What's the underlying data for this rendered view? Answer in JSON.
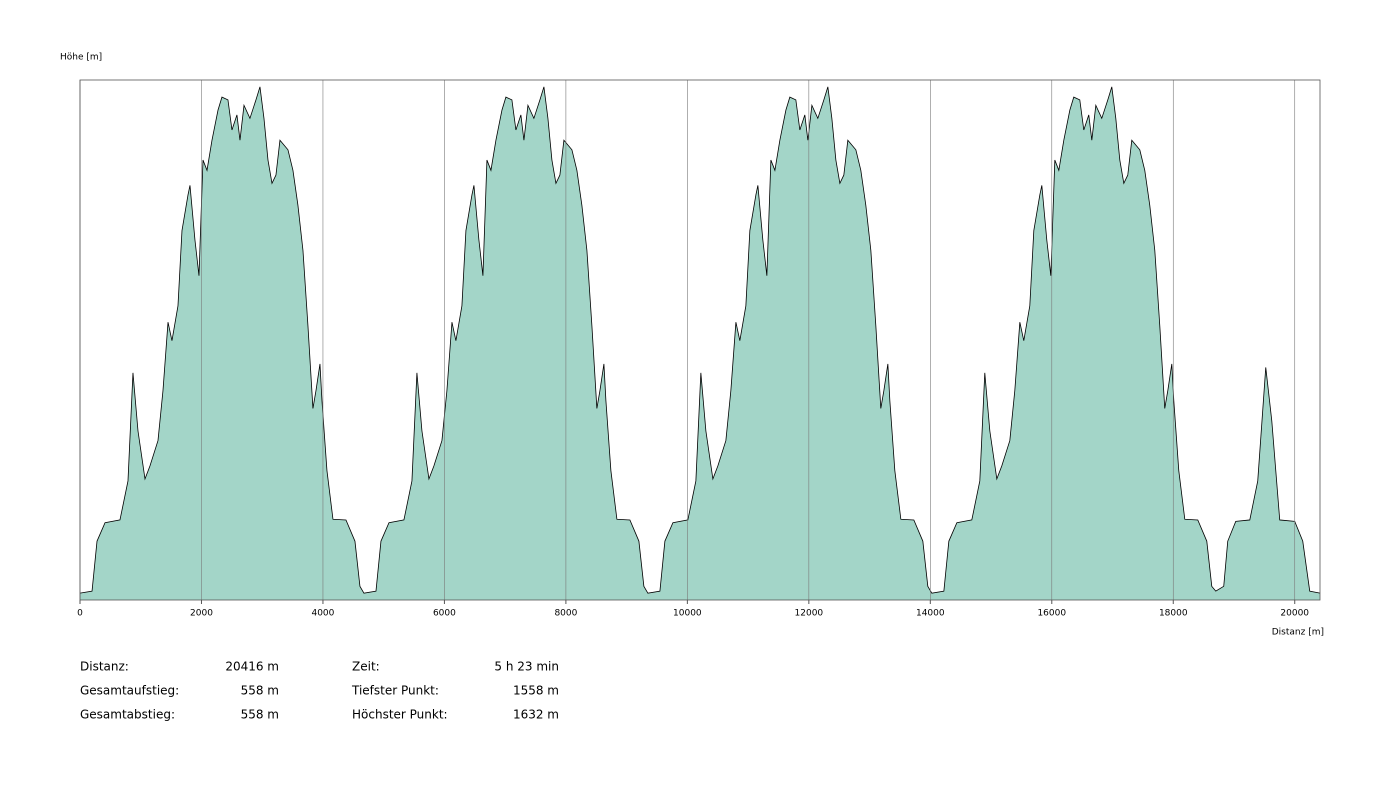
{
  "chart_data": {
    "type": "area",
    "ylabel": "Höhe [m]",
    "xlabel": "Distanz [m]",
    "color": "#a3d5c8",
    "line_color": "#000000",
    "grid": true,
    "xlim": [
      0,
      20416
    ],
    "ylim": [
      1557,
      1633
    ],
    "xticks": [
      0,
      2000,
      4000,
      6000,
      8000,
      10000,
      12000,
      14000,
      16000,
      18000,
      20000
    ],
    "x": [
      0,
      198,
      280,
      412,
      658,
      790,
      872,
      955,
      1070,
      1152,
      1284,
      1366,
      1449,
      1514,
      1613,
      1679,
      1778,
      1811,
      1893,
      1959,
      2025,
      2091,
      2173,
      2272,
      2337,
      2436,
      2502,
      2584,
      2634,
      2700,
      2798,
      2897,
      2963,
      3029,
      3095,
      3161,
      3226,
      3292,
      3424,
      3506,
      3588,
      3671,
      3753,
      3835,
      3885,
      3951,
      3984,
      4066,
      4165,
      4379,
      4527,
      4609,
      4675,
      4873,
      4955,
      5087,
      5333,
      5465,
      5547,
      5630,
      5745,
      5827,
      5959,
      6041,
      6124,
      6189,
      6288,
      6354,
      6453,
      6486,
      6568,
      6634,
      6700,
      6766,
      6848,
      6947,
      7012,
      7111,
      7177,
      7259,
      7309,
      7375,
      7473,
      7572,
      7638,
      7704,
      7770,
      7836,
      7901,
      7967,
      8099,
      8181,
      8263,
      8346,
      8428,
      8510,
      8560,
      8626,
      8659,
      8741,
      8840,
      9054,
      9202,
      9284,
      9350,
      9548,
      9630,
      9762,
      10008,
      10140,
      10222,
      10305,
      10420,
      10502,
      10634,
      10716,
      10799,
      10864,
      10963,
      11029,
      11128,
      11161,
      11243,
      11309,
      11375,
      11441,
      11523,
      11622,
      11687,
      11786,
      11852,
      11934,
      11984,
      12050,
      12148,
      12247,
      12313,
      12379,
      12445,
      12511,
      12576,
      12642,
      12774,
      12856,
      12938,
      13021,
      13103,
      13185,
      13235,
      13301,
      13334,
      13416,
      13515,
      13729,
      13877,
      13959,
      14025,
      14223,
      14305,
      14437,
      14683,
      14815,
      14897,
      14980,
      15095,
      15177,
      15309,
      15391,
      15474,
      15539,
      15638,
      15704,
      15803,
      15836,
      15918,
      15984,
      16050,
      16116,
      16198,
      16297,
      16362,
      16461,
      16527,
      16609,
      16659,
      16725,
      16823,
      16922,
      16988,
      17054,
      17120,
      17186,
      17251,
      17317,
      17449,
      17531,
      17613,
      17696,
      17778,
      17860,
      17910,
      17976,
      18009,
      18091,
      18190,
      18404,
      18552,
      18634,
      18700,
      18831,
      18897,
      19029,
      19260,
      19391,
      19523,
      19622,
      19753,
      20000,
      20132,
      20247,
      20416
    ],
    "y": [
      1558.0,
      1558.3,
      1565.6,
      1568.3,
      1568.7,
      1574.4,
      1590.2,
      1581.7,
      1574.7,
      1576.6,
      1580.3,
      1587.6,
      1597.6,
      1594.9,
      1600.0,
      1611.0,
      1616.2,
      1617.6,
      1609.6,
      1604.4,
      1621.3,
      1619.8,
      1624.2,
      1628.6,
      1630.5,
      1630.1,
      1625.7,
      1627.9,
      1624.2,
      1629.3,
      1627.4,
      1630.1,
      1632.0,
      1627.4,
      1621.3,
      1617.9,
      1619.1,
      1624.2,
      1622.8,
      1619.8,
      1614.7,
      1608.1,
      1597.1,
      1585.0,
      1587.6,
      1591.5,
      1586.1,
      1575.9,
      1568.8,
      1568.7,
      1565.6,
      1559.0,
      1558.0,
      1558.3,
      1565.6,
      1568.3,
      1568.7,
      1574.4,
      1590.2,
      1581.7,
      1574.7,
      1576.6,
      1580.3,
      1587.6,
      1597.6,
      1594.9,
      1600.0,
      1611.0,
      1616.2,
      1617.6,
      1609.6,
      1604.4,
      1621.3,
      1619.8,
      1624.2,
      1628.6,
      1630.5,
      1630.1,
      1625.7,
      1627.9,
      1624.2,
      1629.3,
      1627.4,
      1630.1,
      1632.0,
      1627.4,
      1621.3,
      1617.9,
      1619.1,
      1624.2,
      1622.8,
      1619.8,
      1614.7,
      1608.1,
      1597.1,
      1585.0,
      1587.6,
      1591.5,
      1586.1,
      1575.9,
      1568.8,
      1568.7,
      1565.6,
      1559.0,
      1558.0,
      1558.3,
      1565.6,
      1568.3,
      1568.7,
      1574.4,
      1590.2,
      1581.7,
      1574.7,
      1576.6,
      1580.3,
      1587.6,
      1597.6,
      1594.9,
      1600.0,
      1611.0,
      1616.2,
      1617.6,
      1609.6,
      1604.4,
      1621.3,
      1619.8,
      1624.2,
      1628.6,
      1630.5,
      1630.1,
      1625.7,
      1627.9,
      1624.2,
      1629.3,
      1627.4,
      1630.1,
      1632.0,
      1627.4,
      1621.3,
      1617.9,
      1619.1,
      1624.2,
      1622.8,
      1619.8,
      1614.7,
      1608.1,
      1597.1,
      1585.0,
      1587.6,
      1591.5,
      1586.1,
      1575.9,
      1568.8,
      1568.7,
      1565.6,
      1559.0,
      1558.0,
      1558.3,
      1565.6,
      1568.3,
      1568.7,
      1574.4,
      1590.2,
      1581.7,
      1574.7,
      1576.6,
      1580.3,
      1587.6,
      1597.6,
      1594.9,
      1600.0,
      1611.0,
      1616.2,
      1617.6,
      1609.6,
      1604.4,
      1621.3,
      1619.8,
      1624.2,
      1628.6,
      1630.5,
      1630.1,
      1625.7,
      1627.9,
      1624.2,
      1629.3,
      1627.4,
      1630.1,
      1632.0,
      1627.4,
      1621.3,
      1617.9,
      1619.1,
      1624.2,
      1622.8,
      1619.8,
      1614.7,
      1608.1,
      1597.1,
      1585.0,
      1587.6,
      1591.5,
      1586.1,
      1575.9,
      1568.8,
      1568.7,
      1565.6,
      1559.0,
      1558.3,
      1559.0,
      1565.6,
      1568.5,
      1568.7,
      1574.4,
      1591.0,
      1583.2,
      1568.7,
      1568.5,
      1565.6,
      1558.3,
      1558.0
    ]
  },
  "stats": {
    "rows": [
      [
        "Distanz:",
        "20416 m",
        "Zeit:",
        "5 h 23 min"
      ],
      [
        "Gesamtaufstieg:",
        "558 m",
        "Tiefster Punkt:",
        "1558 m"
      ],
      [
        "Gesamtabstieg:",
        "558 m",
        "Höchster Punkt:",
        "1632 m"
      ]
    ]
  }
}
